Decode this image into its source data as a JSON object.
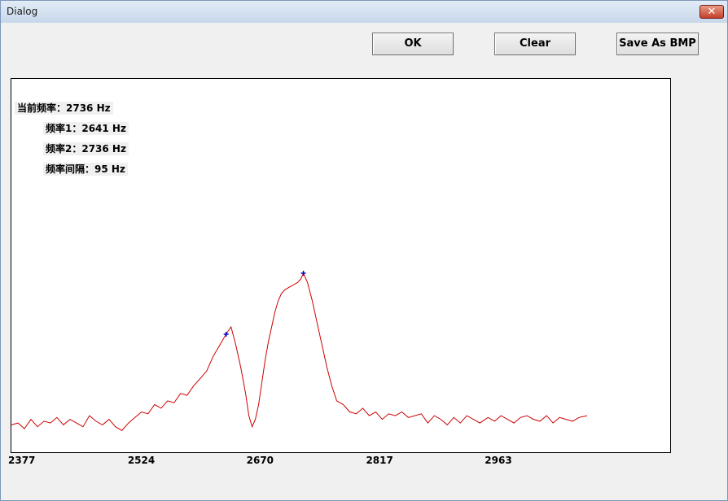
{
  "window": {
    "title": "Dialog",
    "close_glyph": "✕"
  },
  "buttons": {
    "ok": "OK",
    "clear": "Clear",
    "save_bmp": "Save As BMP"
  },
  "readout": {
    "current": "当前频率：2736 Hz",
    "freq1": "频率1：2641 Hz",
    "freq2": "频率2：2736 Hz",
    "interval": "频率间隔：95 Hz"
  },
  "chart_data": {
    "type": "line",
    "x_ticks": [
      "2377",
      "2524",
      "2670",
      "2817",
      "2963"
    ],
    "xlim": [
      2377,
      3187
    ],
    "ylim": [
      0,
      1
    ],
    "series": [
      {
        "color": "#cc0000",
        "x": [
          2377,
          2385,
          2393,
          2401,
          2409,
          2417,
          2425,
          2433,
          2441,
          2449,
          2457,
          2465,
          2473,
          2481,
          2489,
          2497,
          2505,
          2513,
          2521,
          2529,
          2537,
          2545,
          2553,
          2561,
          2569,
          2577,
          2585,
          2593,
          2601,
          2609,
          2617,
          2625,
          2633,
          2641,
          2647,
          2653,
          2659,
          2665,
          2669,
          2673,
          2677,
          2681,
          2685,
          2689,
          2693,
          2697,
          2701,
          2705,
          2709,
          2713,
          2717,
          2721,
          2725,
          2729,
          2733,
          2736,
          2741,
          2747,
          2753,
          2759,
          2765,
          2771,
          2777,
          2785,
          2793,
          2801,
          2809,
          2817,
          2825,
          2833,
          2841,
          2849,
          2857,
          2865,
          2873,
          2881,
          2889,
          2897,
          2905,
          2913,
          2921,
          2929,
          2937,
          2945,
          2953,
          2963,
          2971,
          2979,
          2987,
          2995,
          3003,
          3011,
          3019,
          3027,
          3035,
          3043,
          3051,
          3059,
          3067,
          3075,
          3085
        ],
        "y": [
          0.065,
          0.07,
          0.055,
          0.08,
          0.06,
          0.075,
          0.07,
          0.085,
          0.065,
          0.08,
          0.07,
          0.06,
          0.09,
          0.075,
          0.065,
          0.08,
          0.06,
          0.05,
          0.07,
          0.085,
          0.1,
          0.095,
          0.12,
          0.11,
          0.13,
          0.125,
          0.15,
          0.145,
          0.17,
          0.19,
          0.21,
          0.25,
          0.28,
          0.31,
          0.33,
          0.28,
          0.22,
          0.15,
          0.09,
          0.06,
          0.08,
          0.12,
          0.18,
          0.24,
          0.29,
          0.33,
          0.37,
          0.4,
          0.42,
          0.43,
          0.435,
          0.44,
          0.445,
          0.45,
          0.46,
          0.475,
          0.45,
          0.4,
          0.34,
          0.28,
          0.22,
          0.17,
          0.13,
          0.12,
          0.1,
          0.095,
          0.11,
          0.09,
          0.1,
          0.08,
          0.095,
          0.09,
          0.1,
          0.085,
          0.09,
          0.095,
          0.07,
          0.09,
          0.08,
          0.065,
          0.085,
          0.07,
          0.09,
          0.08,
          0.07,
          0.085,
          0.075,
          0.09,
          0.08,
          0.07,
          0.085,
          0.09,
          0.08,
          0.075,
          0.09,
          0.07,
          0.085,
          0.08,
          0.075,
          0.085,
          0.09
        ]
      }
    ],
    "markers": [
      {
        "x": 2641,
        "y": 0.31,
        "color": "#0000cc"
      },
      {
        "x": 2736,
        "y": 0.475,
        "color": "#0000cc"
      }
    ]
  }
}
